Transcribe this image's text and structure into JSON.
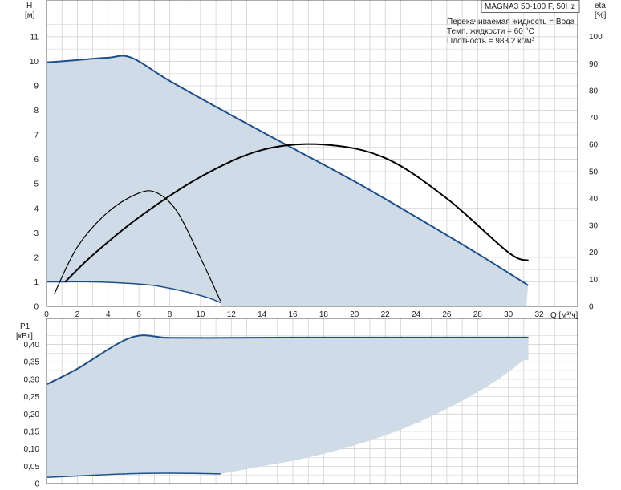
{
  "title": "MAGNA3 50-100 F, 50Hz",
  "info": [
    "Перекачиваемая жидкость = Вода",
    "Темп. жидкости = 60 °C",
    "Плотность = 983.2 кг/м³"
  ],
  "colors": {
    "area": "#cfdbe6",
    "pump_curve": "#1f4f8a",
    "efficiency": "#000000",
    "grid": "#cccccc",
    "axis": "#555555"
  },
  "chart_data": [
    {
      "type": "area",
      "panel": "head",
      "ylabel": [
        "H",
        "[м]"
      ],
      "y2label": [
        "eta",
        "[%]"
      ],
      "xlabel": "Q [м³/ч]",
      "xlim": [
        0,
        34.5
      ],
      "ylim": [
        0,
        12.5
      ],
      "y2lim": [
        0,
        113.6
      ],
      "xticks": [
        "0",
        "2",
        "4",
        "6",
        "8",
        "10",
        "12",
        "14",
        "16",
        "18",
        "20",
        "22",
        "24",
        "26",
        "28",
        "30",
        "32"
      ],
      "yticks": [
        "0",
        "1",
        "2",
        "3",
        "4",
        "5",
        "6",
        "7",
        "8",
        "9",
        "10",
        "11"
      ],
      "y2ticks": [
        "0",
        "10",
        "20",
        "30",
        "40",
        "50",
        "60",
        "70",
        "80",
        "90",
        "100"
      ],
      "grid": true,
      "series": [
        {
          "role": "max-curve",
          "x": [
            0,
            2,
            4,
            5.5,
            8,
            12,
            16,
            20,
            24,
            28,
            31.3
          ],
          "y": [
            9.95,
            10.05,
            10.15,
            10.15,
            9.2,
            7.8,
            6.45,
            5.1,
            3.65,
            2.15,
            0.85
          ]
        },
        {
          "role": "min-curve",
          "x": [
            0,
            1,
            3,
            5,
            7,
            9,
            10.5,
            11.3
          ],
          "y": [
            1.0,
            1.0,
            1.0,
            0.95,
            0.85,
            0.6,
            0.35,
            0.15
          ]
        },
        {
          "role": "efficiency-max",
          "axis": "y2",
          "x": [
            1.2,
            3,
            6,
            10,
            14,
            18,
            22,
            26,
            30,
            31.3
          ],
          "y": [
            9,
            19,
            33,
            48,
            58,
            60,
            55,
            40,
            20,
            17
          ]
        },
        {
          "role": "efficiency-min",
          "axis": "y2",
          "x": [
            0.5,
            2,
            4,
            6,
            7.2,
            8.5,
            10,
            11.3
          ],
          "y": [
            4.5,
            22,
            35,
            42,
            42,
            35,
            18,
            2
          ]
        }
      ]
    },
    {
      "type": "area",
      "panel": "power",
      "ylabel": [
        "P1",
        "[кВт]"
      ],
      "xlim": [
        0,
        34.5
      ],
      "ylim": [
        0,
        0.475
      ],
      "yticks": [
        "0",
        "0,05",
        "0,10",
        "0,15",
        "0,20",
        "0,25",
        "0,30",
        "0,35",
        "0,40"
      ],
      "grid": true,
      "series": [
        {
          "role": "max-power",
          "x": [
            0,
            2,
            5.5,
            8,
            12,
            16,
            20,
            24,
            28,
            31.3
          ],
          "y": [
            0.285,
            0.33,
            0.42,
            0.419,
            0.419,
            0.42,
            0.42,
            0.42,
            0.42,
            0.42
          ]
        },
        {
          "role": "min-power",
          "x": [
            0,
            2,
            4,
            6,
            8,
            10,
            11.3
          ],
          "y": [
            0.018,
            0.022,
            0.026,
            0.029,
            0.03,
            0.029,
            0.028
          ]
        },
        {
          "role": "area-boundary",
          "x": [
            11.3,
            14,
            17,
            20,
            23,
            26,
            29,
            31
          ],
          "y": [
            0.028,
            0.05,
            0.075,
            0.11,
            0.155,
            0.215,
            0.29,
            0.355
          ]
        }
      ]
    }
  ]
}
